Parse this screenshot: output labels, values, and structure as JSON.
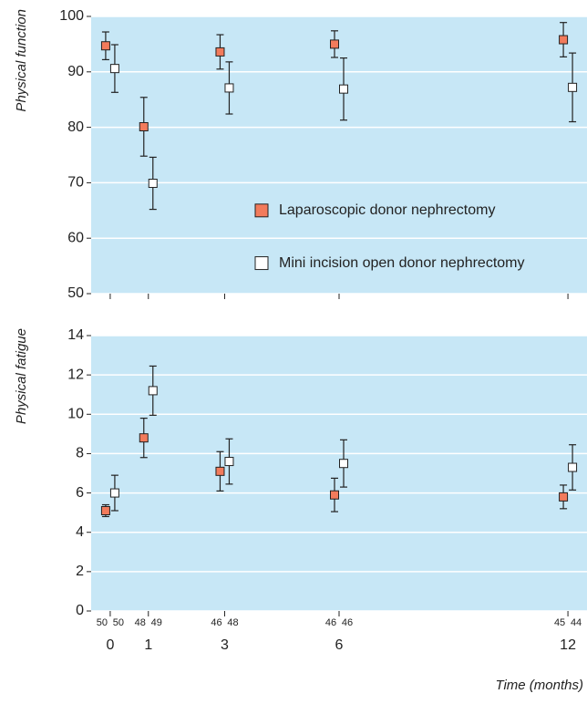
{
  "chart_data": [
    {
      "type": "scatter",
      "ylabel": "Physical function",
      "x": [
        0,
        1,
        3,
        6,
        12
      ],
      "xlim": [
        -0.5,
        12.5
      ],
      "xticks": [
        0,
        1,
        3,
        6,
        12
      ],
      "ylim": [
        50,
        100
      ],
      "yticks": [
        50,
        60,
        70,
        80,
        90,
        100
      ],
      "grid": true,
      "legend": "center right",
      "series": [
        {
          "name": "Laparoscopic donor nephrectomy",
          "color": "#f27b5c",
          "values": [
            94.7,
            80.1,
            93.6,
            95.0,
            95.8
          ],
          "errors": [
            2.5,
            5.3,
            3.1,
            2.4,
            3.1
          ]
        },
        {
          "name": "Mini incision open donor nephrectomy",
          "color": "#ffffff",
          "values": [
            90.6,
            69.9,
            87.1,
            86.9,
            87.2
          ],
          "errors": [
            4.3,
            4.7,
            4.7,
            5.6,
            6.2
          ]
        }
      ]
    },
    {
      "type": "scatter",
      "ylabel": "Physical fatigue",
      "xlabel": "Time (months)",
      "x": [
        0,
        1,
        3,
        6,
        12
      ],
      "xlim": [
        -0.5,
        12.5
      ],
      "xticks": [
        0,
        1,
        3,
        6,
        12
      ],
      "ylim": [
        0,
        14
      ],
      "yticks": [
        0,
        2,
        4,
        6,
        8,
        10,
        12,
        14
      ],
      "grid": true,
      "series": [
        {
          "color": "#f27b5c",
          "values": [
            5.1,
            8.8,
            7.1,
            5.9,
            5.8
          ],
          "errors": [
            0.3,
            1.0,
            1.0,
            0.85,
            0.6
          ],
          "n": [
            50,
            48,
            46,
            46,
            45
          ]
        },
        {
          "color": "#ffffff",
          "values": [
            6.0,
            11.2,
            7.6,
            7.5,
            7.3
          ],
          "errors": [
            0.9,
            1.25,
            1.15,
            1.2,
            1.15
          ],
          "n": [
            50,
            49,
            48,
            46,
            44
          ]
        }
      ]
    }
  ]
}
